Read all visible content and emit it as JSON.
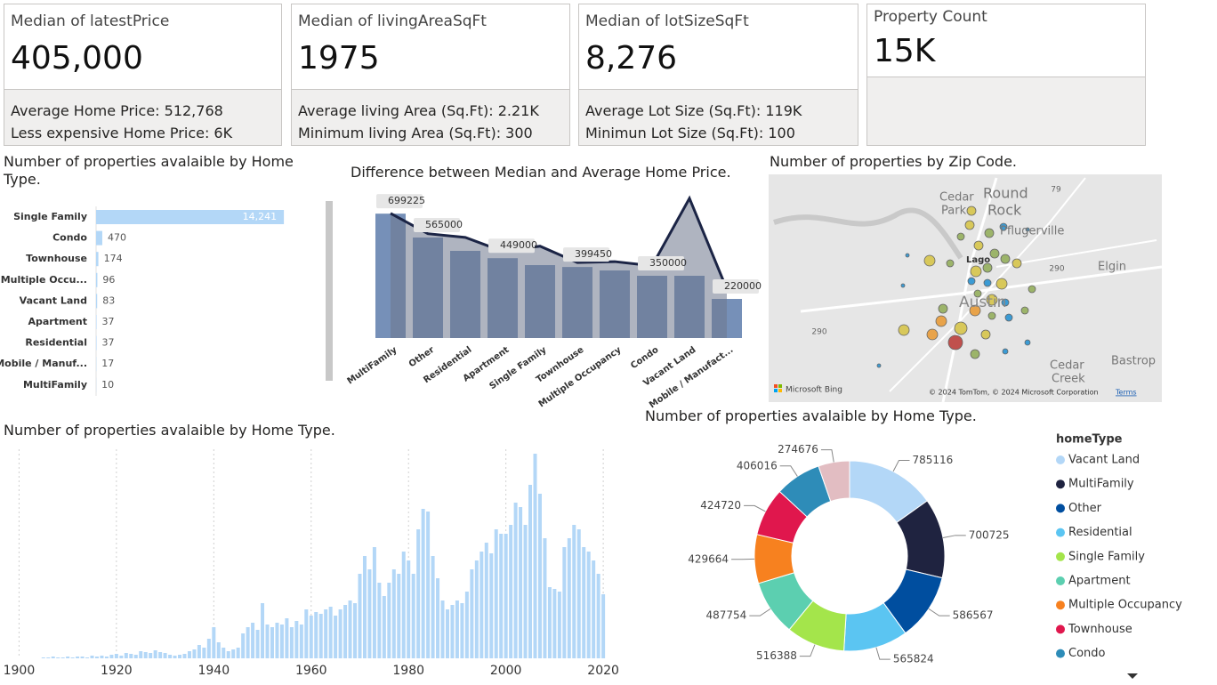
{
  "cards": [
    {
      "title": "Median of latestPrice",
      "value": "405,000",
      "lines": [
        "Average Home Price: 512,768",
        "Less expensive Home Price: 6K"
      ]
    },
    {
      "title": "Median of livingAreaSqFt",
      "value": "1975",
      "lines": [
        "Average living Area (Sq.Ft): 2.21K",
        "Minimum living Area (Sq.Ft): 300"
      ]
    },
    {
      "title": "Median of lotSizeSqFt",
      "value": "8,276",
      "lines": [
        "Average Lot Size (Sq.Ft): 119K",
        "Minimun Lot Size (Sq.Ft): 100"
      ]
    },
    {
      "title": "Property Count",
      "value": "15K",
      "lines": []
    }
  ],
  "map": {
    "title": "Number of properties by Zip Code.",
    "places": [
      "Cedar",
      "Park",
      "Round",
      "Rock",
      "Pflugerville",
      "Elgin",
      "Lago",
      "Austin",
      "Cedar",
      "Creek",
      "Bastrop"
    ],
    "roads": [
      "79",
      "290",
      "290"
    ],
    "brand": "Microsoft Bing",
    "attribution": "© 2024 TomTom, © 2024 Microsoft Corporation",
    "terms": "Terms"
  },
  "chart_data": [
    {
      "type": "hbar",
      "title": "Number of properties avalaible by Home Type.",
      "categories": [
        "Single Family",
        "Condo",
        "Townhouse",
        "Multiple Occu...",
        "Vacant Land",
        "Apartment",
        "Residential",
        "Mobile / Manuf...",
        "MultiFamily"
      ],
      "values": [
        14241,
        470,
        174,
        96,
        83,
        37,
        37,
        17,
        10
      ],
      "value_labels": [
        "14,241",
        "470",
        "174",
        "96",
        "83",
        "37",
        "37",
        "17",
        "10"
      ],
      "color": "#b3d7f7",
      "xlim": [
        0,
        17000
      ]
    },
    {
      "type": "combo",
      "title": "Difference between Median and Average Home Price.",
      "categories": [
        "MultiFamily",
        "Other",
        "Residential",
        "Apartment",
        "Single Family",
        "Townhouse",
        "Multiple Occupancy",
        "Condo",
        "Vacant Land",
        "Mobile / Manufact..."
      ],
      "series": [
        {
          "values": [
            699225,
            565000,
            490000,
            449000,
            410000,
            399450,
            380000,
            350000,
            350000,
            220000
          ],
          "value_labels": [
            "699225",
            "565000",
            null,
            "449000",
            null,
            "399450",
            null,
            "350000",
            null,
            "220000"
          ],
          "color": "#7690b8"
        },
        {
          "values": [
            700725,
            586567,
            565824,
            487754,
            516388,
            424720,
            429664,
            406016,
            785116,
            274676
          ],
          "color": "#1b2445"
        }
      ],
      "ylim": [
        0,
        825000
      ]
    },
    {
      "type": "histogram",
      "title": "Number of properties avalaible by Home Type.",
      "x": [
        1905,
        1906,
        1907,
        1908,
        1909,
        1910,
        1911,
        1912,
        1913,
        1914,
        1915,
        1916,
        1917,
        1918,
        1919,
        1920,
        1921,
        1922,
        1923,
        1924,
        1925,
        1926,
        1927,
        1928,
        1929,
        1930,
        1931,
        1932,
        1933,
        1934,
        1935,
        1936,
        1937,
        1938,
        1939,
        1940,
        1941,
        1942,
        1943,
        1944,
        1945,
        1946,
        1947,
        1948,
        1949,
        1950,
        1951,
        1952,
        1953,
        1954,
        1955,
        1956,
        1957,
        1958,
        1959,
        1960,
        1961,
        1962,
        1963,
        1964,
        1965,
        1966,
        1967,
        1968,
        1969,
        1970,
        1971,
        1972,
        1973,
        1974,
        1975,
        1976,
        1977,
        1978,
        1979,
        1980,
        1981,
        1982,
        1983,
        1984,
        1985,
        1986,
        1987,
        1988,
        1989,
        1990,
        1991,
        1992,
        1993,
        1994,
        1995,
        1996,
        1997,
        1998,
        1999,
        2000,
        2001,
        2002,
        2003,
        2004,
        2005,
        2006,
        2007,
        2008,
        2009,
        2010,
        2011,
        2012,
        2013,
        2014,
        2015,
        2016,
        2017,
        2018,
        2019,
        2020
      ],
      "values": [
        1,
        1,
        2,
        1,
        1,
        2,
        1,
        2,
        2,
        1,
        3,
        2,
        3,
        2,
        4,
        5,
        3,
        6,
        5,
        4,
        8,
        7,
        6,
        9,
        7,
        6,
        4,
        3,
        4,
        5,
        8,
        10,
        15,
        12,
        22,
        35,
        18,
        12,
        8,
        10,
        12,
        28,
        35,
        40,
        32,
        62,
        38,
        35,
        40,
        38,
        45,
        35,
        42,
        38,
        55,
        48,
        52,
        50,
        55,
        58,
        48,
        55,
        60,
        65,
        62,
        95,
        115,
        100,
        125,
        85,
        70,
        85,
        100,
        95,
        120,
        110,
        95,
        145,
        168,
        165,
        115,
        90,
        65,
        55,
        60,
        65,
        62,
        75,
        100,
        110,
        120,
        130,
        118,
        145,
        140,
        140,
        150,
        175,
        170,
        150,
        195,
        230,
        185,
        135,
        80,
        78,
        75,
        125,
        135,
        150,
        145,
        125,
        120,
        110,
        95,
        72
      ],
      "color": "#b3d7f7",
      "xlim": [
        1897,
        2024
      ],
      "xticks": [
        1900,
        1920,
        1940,
        1960,
        1980,
        2000,
        2020
      ],
      "ylim": [
        0,
        250
      ],
      "grid": true
    },
    {
      "type": "donut",
      "title": "Number of properties avalaible by Home Type.",
      "legend_title": "homeType",
      "categories": [
        "Vacant Land",
        "MultiFamily",
        "Other",
        "Residential",
        "Single Family",
        "Apartment",
        "Multiple Occupancy",
        "Townhouse",
        "Condo",
        null
      ],
      "values": [
        785116,
        700725,
        586567,
        565824,
        516388,
        487754,
        429664,
        424720,
        406016,
        274676
      ],
      "colors": [
        "#b3d7f7",
        "#1f2340",
        "#004e9f",
        "#5bc5f2",
        "#a4e54b",
        "#5ccfb0",
        "#f7811f",
        "#e0174d",
        "#2e8cb8",
        "#e2bdc2"
      ],
      "legend": "right"
    }
  ]
}
